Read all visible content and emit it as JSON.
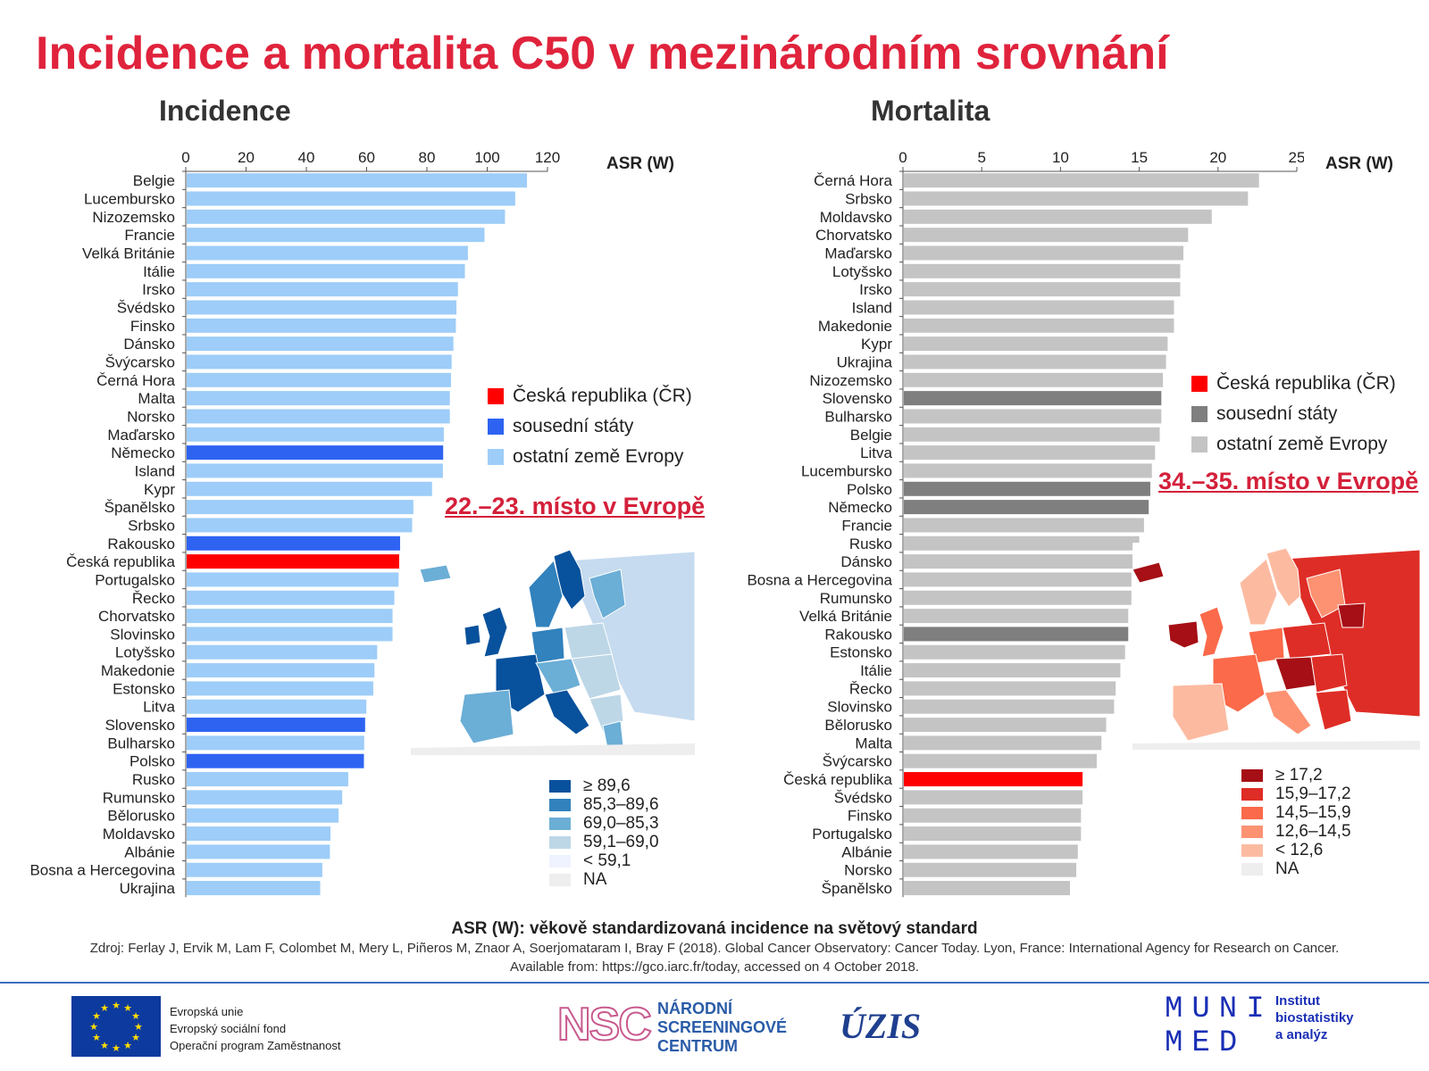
{
  "title": "Incidence a mortalita C50 v mezinárodním srovnání",
  "colors": {
    "title": "#e0233c",
    "czech": "#ff0000",
    "neighbor_incidence": "#2e63f2",
    "other_incidence": "#9dcdf8",
    "neighbor_mortality": "#7f7f7f",
    "other_mortality": "#c4c4c4"
  },
  "incidence": {
    "panel_title": "Incidence",
    "axis_unit": "ASR (W)",
    "rank_text": "22.–23. místo v Evropě",
    "legend": [
      {
        "label": "Česká republika (ČR)",
        "color": "#ff0000"
      },
      {
        "label": "sousední státy",
        "color": "#2e63f2"
      },
      {
        "label": "ostatní země Evropy",
        "color": "#9dcdf8"
      }
    ],
    "map_legend": [
      {
        "label": "≥ 89,6",
        "color": "#08519c"
      },
      {
        "label": "85,3–89,6",
        "color": "#3182bd"
      },
      {
        "label": "69,0–85,3",
        "color": "#6baed6"
      },
      {
        "label": "59,1–69,0",
        "color": "#bdd7e7"
      },
      {
        "label": "< 59,1",
        "color": "#eff3ff"
      },
      {
        "label": "NA",
        "color": "#eeeeee"
      }
    ]
  },
  "mortality": {
    "panel_title": "Mortalita",
    "axis_unit": "ASR (W)",
    "rank_text": "34.–35. místo v Evropě",
    "legend": [
      {
        "label": "Česká republika (ČR)",
        "color": "#ff0000"
      },
      {
        "label": "sousední státy",
        "color": "#7f7f7f"
      },
      {
        "label": "ostatní země Evropy",
        "color": "#c4c4c4"
      }
    ],
    "map_legend": [
      {
        "label": "≥ 17,2",
        "color": "#a50f15"
      },
      {
        "label": "15,9–17,2",
        "color": "#de2d26"
      },
      {
        "label": "14,5–15,9",
        "color": "#fb6a4a"
      },
      {
        "label": "12,6–14,5",
        "color": "#fc9272"
      },
      {
        "label": "< 12,6",
        "color": "#fcbba1"
      },
      {
        "label": "NA",
        "color": "#eeeeee"
      }
    ]
  },
  "chart_data": [
    {
      "type": "bar",
      "orientation": "horizontal",
      "title": "Incidence",
      "xlabel": "ASR (W)",
      "xlim": [
        0,
        120
      ],
      "xticks": [
        0,
        20,
        40,
        60,
        80,
        100,
        120
      ],
      "categories": [
        "Belgie",
        "Lucembursko",
        "Nizozemsko",
        "Francie",
        "Velká Británie",
        "Itálie",
        "Irsko",
        "Švédsko",
        "Finsko",
        "Dánsko",
        "Švýcarsko",
        "Černá Hora",
        "Malta",
        "Norsko",
        "Maďarsko",
        "Německo",
        "Island",
        "Kypr",
        "Španělsko",
        "Srbsko",
        "Rakousko",
        "Česká republika",
        "Portugalsko",
        "Řecko",
        "Chorvatsko",
        "Slovinsko",
        "Lotyšsko",
        "Makedonie",
        "Estonsko",
        "Litva",
        "Slovensko",
        "Bulharsko",
        "Polsko",
        "Rusko",
        "Rumunsko",
        "Bělorusko",
        "Moldavsko",
        "Albánie",
        "Bosna a Hercegovina",
        "Ukrajina"
      ],
      "values": [
        113.2,
        109.3,
        105.9,
        99.1,
        93.6,
        92.6,
        90.3,
        89.8,
        89.6,
        88.8,
        88.2,
        88.0,
        87.6,
        87.6,
        85.6,
        85.4,
        85.3,
        81.7,
        75.5,
        75.1,
        71.1,
        70.8,
        70.6,
        69.2,
        68.6,
        68.6,
        63.5,
        62.6,
        62.2,
        59.9,
        59.5,
        59.2,
        59.1,
        53.9,
        51.9,
        50.7,
        48.0,
        47.8,
        45.3,
        44.6
      ],
      "groups": [
        "other",
        "other",
        "other",
        "other",
        "other",
        "other",
        "other",
        "other",
        "other",
        "other",
        "other",
        "other",
        "other",
        "other",
        "other",
        "neighbor",
        "other",
        "other",
        "other",
        "other",
        "neighbor",
        "czech",
        "other",
        "other",
        "other",
        "other",
        "other",
        "other",
        "other",
        "other",
        "neighbor",
        "other",
        "neighbor",
        "other",
        "other",
        "other",
        "other",
        "other",
        "other",
        "other"
      ],
      "legend": [
        "Česká republika (ČR)",
        "sousední státy",
        "ostatní země Evropy"
      ]
    },
    {
      "type": "bar",
      "orientation": "horizontal",
      "title": "Mortalita",
      "xlabel": "ASR (W)",
      "xlim": [
        0,
        25
      ],
      "xticks": [
        0,
        5,
        10,
        15,
        20,
        25
      ],
      "categories": [
        "Černá Hora",
        "Srbsko",
        "Moldavsko",
        "Chorvatsko",
        "Maďarsko",
        "Lotyšsko",
        "Irsko",
        "Island",
        "Makedonie",
        "Kypr",
        "Ukrajina",
        "Nizozemsko",
        "Slovensko",
        "Bulharsko",
        "Belgie",
        "Litva",
        "Lucembursko",
        "Polsko",
        "Německo",
        "Francie",
        "Rusko",
        "Dánsko",
        "Bosna a Hercegovina",
        "Rumunsko",
        "Velká Británie",
        "Rakousko",
        "Estonsko",
        "Itálie",
        "Řecko",
        "Slovinsko",
        "Bělorusko",
        "Malta",
        "Švýcarsko",
        "Česká republika",
        "Švédsko",
        "Finsko",
        "Portugalsko",
        "Albánie",
        "Norsko",
        "Španělsko"
      ],
      "values": [
        22.6,
        21.9,
        19.6,
        18.1,
        17.8,
        17.6,
        17.6,
        17.2,
        17.2,
        16.8,
        16.7,
        16.5,
        16.4,
        16.4,
        16.3,
        16.0,
        15.8,
        15.7,
        15.6,
        15.3,
        15.0,
        14.6,
        14.5,
        14.5,
        14.3,
        14.3,
        14.1,
        13.8,
        13.5,
        13.4,
        12.9,
        12.6,
        12.3,
        11.4,
        11.4,
        11.3,
        11.3,
        11.1,
        11.0,
        10.6
      ],
      "groups": [
        "other",
        "other",
        "other",
        "other",
        "other",
        "other",
        "other",
        "other",
        "other",
        "other",
        "other",
        "other",
        "neighbor",
        "other",
        "other",
        "other",
        "other",
        "neighbor",
        "neighbor",
        "other",
        "other",
        "other",
        "other",
        "other",
        "other",
        "neighbor",
        "other",
        "other",
        "other",
        "other",
        "other",
        "other",
        "other",
        "czech",
        "other",
        "other",
        "other",
        "other",
        "other",
        "other"
      ],
      "legend": [
        "Česká republika (ČR)",
        "sousední státy",
        "ostatní země Evropy"
      ]
    }
  ],
  "footer": {
    "asr_note": "ASR (W): věkově standardizovaná incidence na světový standard",
    "source_line1": "Zdroj: Ferlay J, Ervik M, Lam F, Colombet M, Mery L, Piñeros M, Znaor A, Soerjomataram I, Bray F (2018). Global Cancer Observatory: Cancer Today. Lyon, France: International Agency for Research on Cancer.",
    "source_line2": "Available from: https://gco.iarc.fr/today, accessed on 4 October 2018."
  },
  "logos": {
    "eu_line1": "Evropská unie",
    "eu_line2": "Evropský sociální fond",
    "eu_line3": "Operační program Zaměstnanost",
    "nsc_abbr": "NSC",
    "nsc_line1": "NÁRODNÍ",
    "nsc_line2": "SCREENINGOVÉ",
    "nsc_line3": "CENTRUM",
    "uzis": "ÚZIS",
    "muni_line1": "MUNI",
    "muni_line2": "MED",
    "iba_line1": "Institut",
    "iba_line2": "biostatistiky",
    "iba_line3": "a analýz"
  }
}
